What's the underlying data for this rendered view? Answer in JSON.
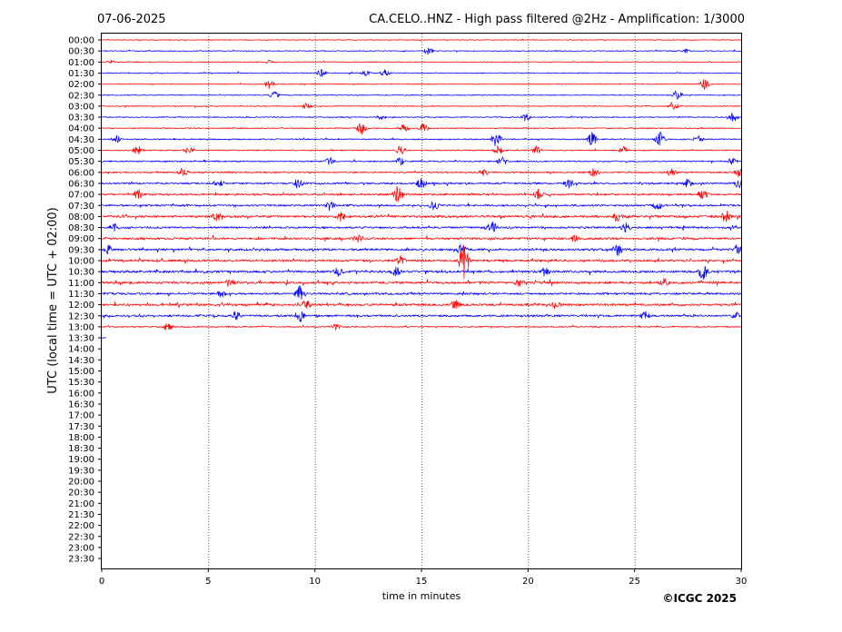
{
  "header": {
    "date": "07-06-2025",
    "title": "CA.CELO..HNZ - High pass filtered @2Hz - Amplification: 1/3000"
  },
  "footer": {
    "credit": "©ICGC 2025"
  },
  "chart_data": {
    "type": "line",
    "title": "CA.CELO..HNZ - High pass filtered @2Hz - Amplification: 1/3000",
    "xlabel": "time in minutes",
    "ylabel": "UTC (local time = UTC + 02:00)",
    "xlim": [
      0,
      30
    ],
    "xticks": [
      0,
      5,
      10,
      15,
      20,
      25,
      30
    ],
    "grid": "vertical dotted lines at 5-minute intervals",
    "row_labels": [
      "00:00",
      "00:30",
      "01:00",
      "01:30",
      "02:00",
      "02:30",
      "03:00",
      "03:30",
      "04:00",
      "04:30",
      "05:00",
      "05:30",
      "06:00",
      "06:30",
      "07:00",
      "07:30",
      "08:00",
      "08:30",
      "09:00",
      "09:30",
      "10:00",
      "10:30",
      "11:00",
      "11:30",
      "12:00",
      "12:30",
      "13:00",
      "13:30",
      "14:00",
      "14:30",
      "15:00",
      "15:30",
      "16:00",
      "16:30",
      "17:00",
      "17:30",
      "18:00",
      "18:30",
      "19:00",
      "19:30",
      "20:00",
      "20:30",
      "21:00",
      "21:30",
      "22:00",
      "22:30",
      "23:00",
      "23:30"
    ],
    "trace_colors": [
      "#ff0000",
      "#0000ff"
    ],
    "series": [
      {
        "label": "00:00",
        "activity": 0.05,
        "events": []
      },
      {
        "label": "00:30",
        "activity": 0.08,
        "events": [
          {
            "t": 15.3,
            "amp": 0.4
          },
          {
            "t": 27.4,
            "amp": 0.25
          }
        ]
      },
      {
        "label": "01:00",
        "activity": 0.08,
        "events": [
          {
            "t": 0.4,
            "amp": 0.2
          },
          {
            "t": 7.9,
            "amp": 0.25
          }
        ]
      },
      {
        "label": "01:30",
        "activity": 0.1,
        "events": [
          {
            "t": 10.3,
            "amp": 0.45
          },
          {
            "t": 12.4,
            "amp": 0.3
          },
          {
            "t": 13.3,
            "amp": 0.4
          }
        ]
      },
      {
        "label": "02:00",
        "activity": 0.08,
        "events": [
          {
            "t": 7.9,
            "amp": 0.55
          },
          {
            "t": 28.3,
            "amp": 0.6
          }
        ]
      },
      {
        "label": "02:30",
        "activity": 0.08,
        "events": [
          {
            "t": 8.1,
            "amp": 0.45
          },
          {
            "t": 27.0,
            "amp": 0.55
          }
        ]
      },
      {
        "label": "03:00",
        "activity": 0.1,
        "events": [
          {
            "t": 9.6,
            "amp": 0.45
          },
          {
            "t": 26.8,
            "amp": 0.5
          }
        ]
      },
      {
        "label": "03:30",
        "activity": 0.12,
        "events": [
          {
            "t": 13.1,
            "amp": 0.35
          },
          {
            "t": 19.9,
            "amp": 0.45
          },
          {
            "t": 29.6,
            "amp": 0.6
          }
        ]
      },
      {
        "label": "04:00",
        "activity": 0.15,
        "events": [
          {
            "t": 12.2,
            "amp": 0.7
          },
          {
            "t": 14.2,
            "amp": 0.45
          },
          {
            "t": 15.1,
            "amp": 0.5
          }
        ]
      },
      {
        "label": "04:30",
        "activity": 0.2,
        "events": [
          {
            "t": 0.7,
            "amp": 0.45
          },
          {
            "t": 18.5,
            "amp": 0.8
          },
          {
            "t": 23.0,
            "amp": 0.75
          },
          {
            "t": 26.2,
            "amp": 0.8
          },
          {
            "t": 28.0,
            "amp": 0.45
          }
        ]
      },
      {
        "label": "05:00",
        "activity": 0.18,
        "events": [
          {
            "t": 1.7,
            "amp": 0.55
          },
          {
            "t": 4.1,
            "amp": 0.45
          },
          {
            "t": 14.0,
            "amp": 0.6
          },
          {
            "t": 18.6,
            "amp": 0.5
          },
          {
            "t": 20.4,
            "amp": 0.45
          },
          {
            "t": 24.5,
            "amp": 0.4
          }
        ]
      },
      {
        "label": "05:30",
        "activity": 0.25,
        "events": [
          {
            "t": 10.7,
            "amp": 0.5
          },
          {
            "t": 14.0,
            "amp": 0.45
          },
          {
            "t": 18.8,
            "amp": 0.5
          },
          {
            "t": 29.6,
            "amp": 0.45
          }
        ]
      },
      {
        "label": "06:00",
        "activity": 0.3,
        "events": [
          {
            "t": 3.8,
            "amp": 0.5
          },
          {
            "t": 17.9,
            "amp": 0.5
          },
          {
            "t": 23.1,
            "amp": 0.5
          },
          {
            "t": 26.7,
            "amp": 0.5
          },
          {
            "t": 29.9,
            "amp": 0.55
          }
        ]
      },
      {
        "label": "06:30",
        "activity": 0.4,
        "events": [
          {
            "t": 5.5,
            "amp": 0.6
          },
          {
            "t": 9.2,
            "amp": 0.55
          },
          {
            "t": 15.0,
            "amp": 0.6
          },
          {
            "t": 21.9,
            "amp": 0.6
          },
          {
            "t": 27.5,
            "amp": 0.55
          },
          {
            "t": 29.9,
            "amp": 0.6
          }
        ]
      },
      {
        "label": "07:00",
        "activity": 0.45,
        "events": [
          {
            "t": 1.7,
            "amp": 0.55
          },
          {
            "t": 13.9,
            "amp": 0.95
          },
          {
            "t": 20.5,
            "amp": 0.6
          },
          {
            "t": 28.2,
            "amp": 0.6
          }
        ]
      },
      {
        "label": "07:30",
        "activity": 0.45,
        "events": [
          {
            "t": 10.7,
            "amp": 0.6
          },
          {
            "t": 15.6,
            "amp": 0.55
          },
          {
            "t": 26.1,
            "amp": 0.55
          }
        ]
      },
      {
        "label": "08:00",
        "activity": 0.6,
        "events": [
          {
            "t": 5.4,
            "amp": 0.55
          },
          {
            "t": 11.2,
            "amp": 0.5
          },
          {
            "t": 24.2,
            "amp": 0.65
          },
          {
            "t": 29.3,
            "amp": 0.75
          }
        ]
      },
      {
        "label": "08:30",
        "activity": 0.5,
        "events": [
          {
            "t": 0.6,
            "amp": 0.55
          },
          {
            "t": 18.3,
            "amp": 0.85
          },
          {
            "t": 24.6,
            "amp": 0.55
          }
        ]
      },
      {
        "label": "09:00",
        "activity": 0.55,
        "events": [
          {
            "t": 12.0,
            "amp": 0.5
          },
          {
            "t": 22.2,
            "amp": 0.5
          }
        ]
      },
      {
        "label": "09:30",
        "activity": 0.55,
        "events": [
          {
            "t": 0.3,
            "amp": 0.55
          },
          {
            "t": 16.9,
            "amp": 0.75
          },
          {
            "t": 24.2,
            "amp": 0.7
          },
          {
            "t": 29.8,
            "amp": 0.6
          }
        ]
      },
      {
        "label": "10:00",
        "activity": 0.55,
        "events": [
          {
            "t": 17.0,
            "amp": 1.8
          },
          {
            "t": 14.0,
            "amp": 0.55
          }
        ]
      },
      {
        "label": "10:30",
        "activity": 0.6,
        "events": [
          {
            "t": 11.1,
            "amp": 0.55
          },
          {
            "t": 13.8,
            "amp": 0.6
          },
          {
            "t": 20.8,
            "amp": 0.55
          },
          {
            "t": 28.2,
            "amp": 0.85
          }
        ]
      },
      {
        "label": "11:00",
        "activity": 0.6,
        "events": [
          {
            "t": 6.0,
            "amp": 0.5
          },
          {
            "t": 19.6,
            "amp": 0.55
          },
          {
            "t": 26.4,
            "amp": 0.55
          }
        ]
      },
      {
        "label": "11:30",
        "activity": 0.5,
        "events": [
          {
            "t": 9.3,
            "amp": 0.85
          },
          {
            "t": 5.6,
            "amp": 0.45
          }
        ]
      },
      {
        "label": "12:00",
        "activity": 0.6,
        "events": [
          {
            "t": 9.6,
            "amp": 0.6
          },
          {
            "t": 16.6,
            "amp": 0.55
          },
          {
            "t": 21.3,
            "amp": 0.5
          }
        ]
      },
      {
        "label": "12:30",
        "activity": 0.5,
        "events": [
          {
            "t": 6.3,
            "amp": 0.55
          },
          {
            "t": 9.3,
            "amp": 0.7
          },
          {
            "t": 25.5,
            "amp": 0.55
          },
          {
            "t": 29.8,
            "amp": 0.55
          }
        ]
      },
      {
        "label": "13:00",
        "activity": 0.2,
        "events": [
          {
            "t": 3.1,
            "amp": 0.45
          },
          {
            "t": 11.0,
            "amp": 0.35
          }
        ],
        "end_minute": 30
      },
      {
        "label": "13:30",
        "activity": 0.05,
        "events": [],
        "end_minute": 0.2
      }
    ]
  }
}
